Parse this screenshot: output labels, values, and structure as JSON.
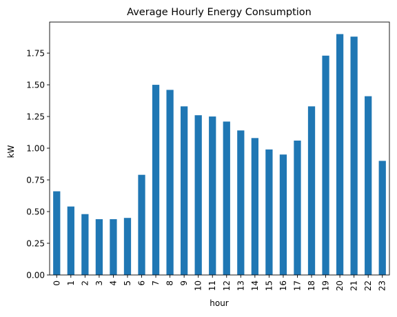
{
  "chart_data": {
    "type": "bar",
    "title": "Average Hourly Energy Consumption",
    "xlabel": "hour",
    "ylabel": "kW",
    "categories": [
      "0",
      "1",
      "2",
      "3",
      "4",
      "5",
      "6",
      "7",
      "8",
      "9",
      "10",
      "11",
      "12",
      "13",
      "14",
      "15",
      "16",
      "17",
      "18",
      "19",
      "20",
      "21",
      "22",
      "23"
    ],
    "values": [
      0.66,
      0.54,
      0.48,
      0.44,
      0.44,
      0.45,
      0.79,
      1.5,
      1.46,
      1.33,
      1.26,
      1.25,
      1.21,
      1.14,
      1.08,
      0.99,
      0.95,
      1.06,
      1.33,
      1.73,
      1.9,
      1.88,
      1.41,
      0.9
    ],
    "yticks": [
      "0.00",
      "0.25",
      "0.50",
      "0.75",
      "1.00",
      "1.25",
      "1.50",
      "1.75"
    ],
    "ylim": [
      0,
      1.995
    ],
    "grid": false,
    "legend": "none",
    "bar_color": "#1f77b4"
  }
}
